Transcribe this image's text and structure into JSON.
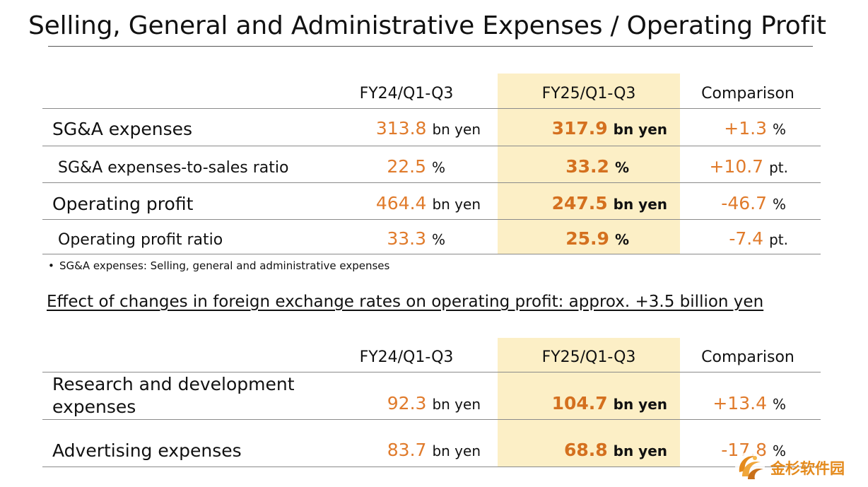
{
  "title": "Selling, General and Administrative Expenses / Operating Profit",
  "table1": {
    "headers": [
      "FY24/Q1-Q3",
      "FY25/Q1-Q3",
      "Comparison"
    ],
    "rows": [
      {
        "label": "SG&A expenses",
        "fy24": "313.8",
        "fy24_unit": "bn yen",
        "fy25": "317.9",
        "fy25_unit": "bn yen",
        "cmp": "+1.3",
        "cmp_unit": "%"
      },
      {
        "label": "SG&A expenses-to-sales ratio",
        "fy24": "22.5",
        "fy24_unit": "%",
        "fy25": "33.2",
        "fy25_unit": "%",
        "cmp": "+10.7",
        "cmp_unit": "pt."
      },
      {
        "label": "Operating profit",
        "fy24": "464.4",
        "fy24_unit": "bn yen",
        "fy25": "247.5",
        "fy25_unit": "bn yen",
        "cmp": "-46.7",
        "cmp_unit": "%"
      },
      {
        "label": "Operating profit ratio",
        "fy24": "33.3",
        "fy24_unit": "%",
        "fy25": "25.9",
        "fy25_unit": "%",
        "cmp": "-7.4",
        "cmp_unit": "pt."
      }
    ]
  },
  "note": {
    "bullet": "•",
    "text": "SG&A expenses: Selling, general and administrative expenses"
  },
  "fx_effect": "Effect of changes in foreign exchange rates on operating profit: approx. +3.5 billion yen",
  "table2": {
    "headers": [
      "FY24/Q1-Q3",
      "FY25/Q1-Q3",
      "Comparison"
    ],
    "rows": [
      {
        "label_line1": "Research and development",
        "label_line2": "expenses",
        "fy24": "92.3",
        "fy24_unit": "bn yen",
        "fy25": "104.7",
        "fy25_unit": "bn yen",
        "cmp": "+13.4",
        "cmp_unit": "%"
      },
      {
        "label": "Advertising expenses",
        "fy24": "83.7",
        "fy24_unit": "bn yen",
        "fy25": "68.8",
        "fy25_unit": "bn yen",
        "cmp": "-17.8",
        "cmp_unit": "%"
      }
    ]
  },
  "watermark": {
    "text": "金杉软件园",
    "icon": "swirl-logo-icon",
    "color": "#e48a1c"
  },
  "colors": {
    "value_orange": "#e07b2c",
    "highlight": "#fcefc6"
  }
}
